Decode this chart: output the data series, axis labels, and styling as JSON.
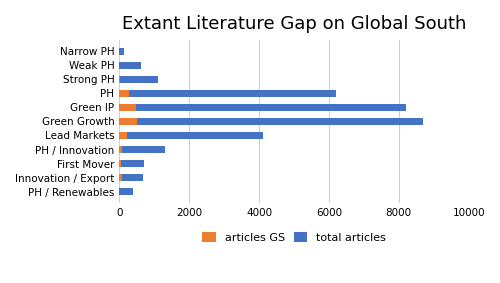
{
  "categories": [
    "Narrow PH",
    "Weak PH",
    "Strong PH",
    "PH",
    "Green IP",
    "Green Growth",
    "Lead Markets",
    "PH / Innovation",
    "First Mover",
    "Innovation / Export",
    "PH / Renewables"
  ],
  "total_articles": [
    130,
    620,
    1100,
    6200,
    8200,
    8700,
    4100,
    1300,
    700,
    680,
    380
  ],
  "articles_gs": [
    0,
    0,
    30,
    280,
    470,
    510,
    230,
    70,
    55,
    80,
    0
  ],
  "color_total": "#4472C4",
  "color_gs": "#ED7D31",
  "title": "Extant Literature Gap on Global South",
  "xlim": [
    0,
    10000
  ],
  "xticks": [
    0,
    2000,
    4000,
    6000,
    8000,
    10000
  ],
  "legend_labels": [
    "articles GS",
    "total articles"
  ],
  "title_fontsize": 13,
  "tick_fontsize": 7.5,
  "legend_fontsize": 8,
  "bar_height": 0.55,
  "bg_color": "#ffffff"
}
